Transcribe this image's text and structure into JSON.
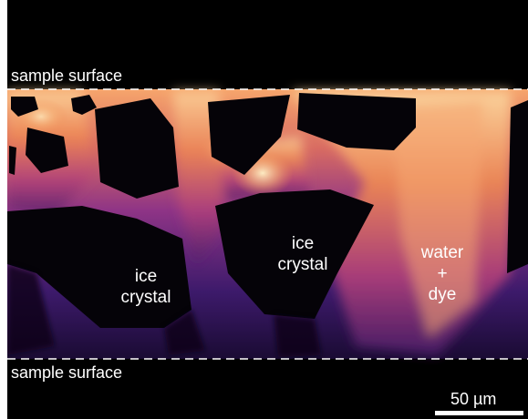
{
  "labels": {
    "surface_top": "sample surface",
    "surface_bottom": "sample surface",
    "ice_crystal_left": [
      "ice",
      "crystal"
    ],
    "ice_crystal_center": [
      "ice",
      "crystal"
    ],
    "water_dye": [
      "water",
      "+",
      "dye"
    ],
    "scale": "50 µm"
  },
  "colors": {
    "background": "#000000",
    "glow_bright": "#fbd7a0",
    "glow_orange": "#f08a52",
    "glow_magenta": "#a43a8a",
    "glow_purple": "#3a1866",
    "label_text": "#ffffff"
  }
}
